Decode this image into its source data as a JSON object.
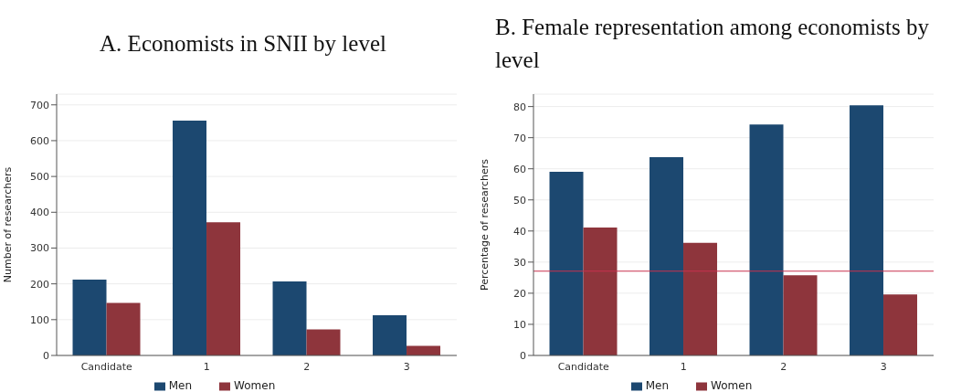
{
  "chart_data": [
    {
      "type": "bar",
      "title": "A. Economists in SNII by level",
      "ylabel": "Number of researchers",
      "categories": [
        "Candidate",
        "1",
        "2",
        "3"
      ],
      "series": [
        {
          "name": "Men",
          "color": "#1c4870",
          "values": [
            212,
            656,
            207,
            112
          ]
        },
        {
          "name": "Women",
          "color": "#8e353c",
          "values": [
            147,
            372,
            73,
            27
          ]
        }
      ],
      "ylim": [
        0,
        730
      ],
      "yticks": [
        0,
        100,
        200,
        300,
        400,
        500,
        600,
        700
      ],
      "grid": "y",
      "legend": "bottom"
    },
    {
      "type": "bar",
      "title": "B. Female representation among economists by level",
      "ylabel": "Percentage of researchers",
      "categories": [
        "Candidate",
        "1",
        "2",
        "3"
      ],
      "series": [
        {
          "name": "Men",
          "color": "#1c4870",
          "values": [
            59.0,
            63.7,
            74.2,
            80.4
          ]
        },
        {
          "name": "Women",
          "color": "#8e353c",
          "values": [
            41.1,
            36.2,
            25.8,
            19.6
          ]
        }
      ],
      "ylim": [
        0,
        84
      ],
      "yticks": [
        0,
        10,
        20,
        30,
        40,
        50,
        60,
        70,
        80
      ],
      "grid": "y",
      "legend": "bottom",
      "ref_lines": [
        {
          "axis": "y",
          "value": 27.1,
          "color": "#c8304e"
        }
      ]
    }
  ]
}
